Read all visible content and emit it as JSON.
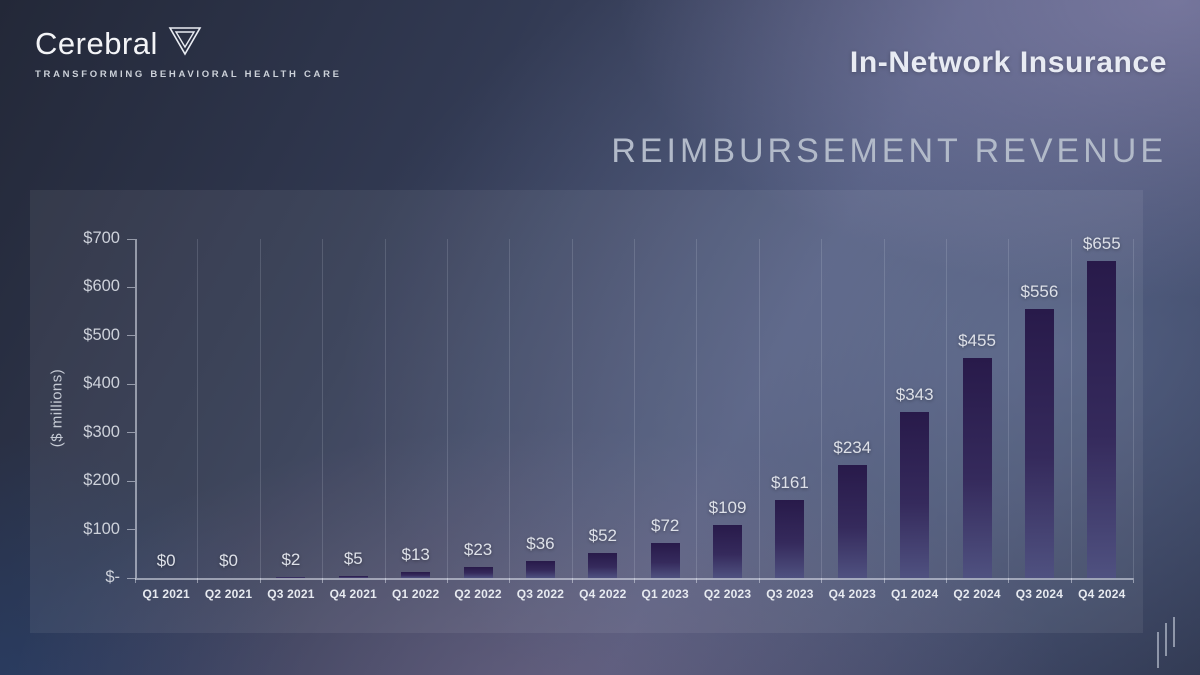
{
  "brand": {
    "name": "Cerebral",
    "tagline": "TRANSFORMING BEHAVIORAL HEALTH CARE"
  },
  "header": {
    "title": "In-Network Insurance",
    "subtitle": "REIMBURSEMENT REVENUE"
  },
  "chart_data": {
    "type": "bar",
    "title": "In-Network Insurance Reimbursement Revenue",
    "ylabel": "($ millions)",
    "xlabel": "",
    "categories": [
      "Q1 2021",
      "Q2 2021",
      "Q3 2021",
      "Q4 2021",
      "Q1 2022",
      "Q2 2022",
      "Q3 2022",
      "Q4 2022",
      "Q1 2023",
      "Q2 2023",
      "Q3 2023",
      "Q4 2023",
      "Q1 2024",
      "Q2 2024",
      "Q3 2024",
      "Q4 2024"
    ],
    "values": [
      0,
      0,
      2,
      5,
      13,
      23,
      36,
      52,
      72,
      109,
      161,
      234,
      343,
      455,
      556,
      655
    ],
    "bar_labels": [
      "$0",
      "$0",
      "$2",
      "$5",
      "$13",
      "$23",
      "$36",
      "$52",
      "$72",
      "$109",
      "$161",
      "$234",
      "$343",
      "$455",
      "$556",
      "$655"
    ],
    "y_tick_values": [
      0,
      100,
      200,
      300,
      400,
      500,
      600,
      700
    ],
    "y_tick_labels": [
      "$-",
      "$100",
      "$200",
      "$300",
      "$400",
      "$500",
      "$600",
      "$700"
    ],
    "ylim": [
      0,
      700
    ],
    "grid": "vertical category separators",
    "legend": "none",
    "colors": {
      "bar_gradient_top": "#281a4a",
      "bar_gradient_bottom": "#4f5180",
      "value_label": "#dde0e8",
      "axis": "#d9dde6",
      "background_top_left": "#232838",
      "background_top_right": "#7a79a1",
      "background_center": "#565d7c"
    }
  }
}
